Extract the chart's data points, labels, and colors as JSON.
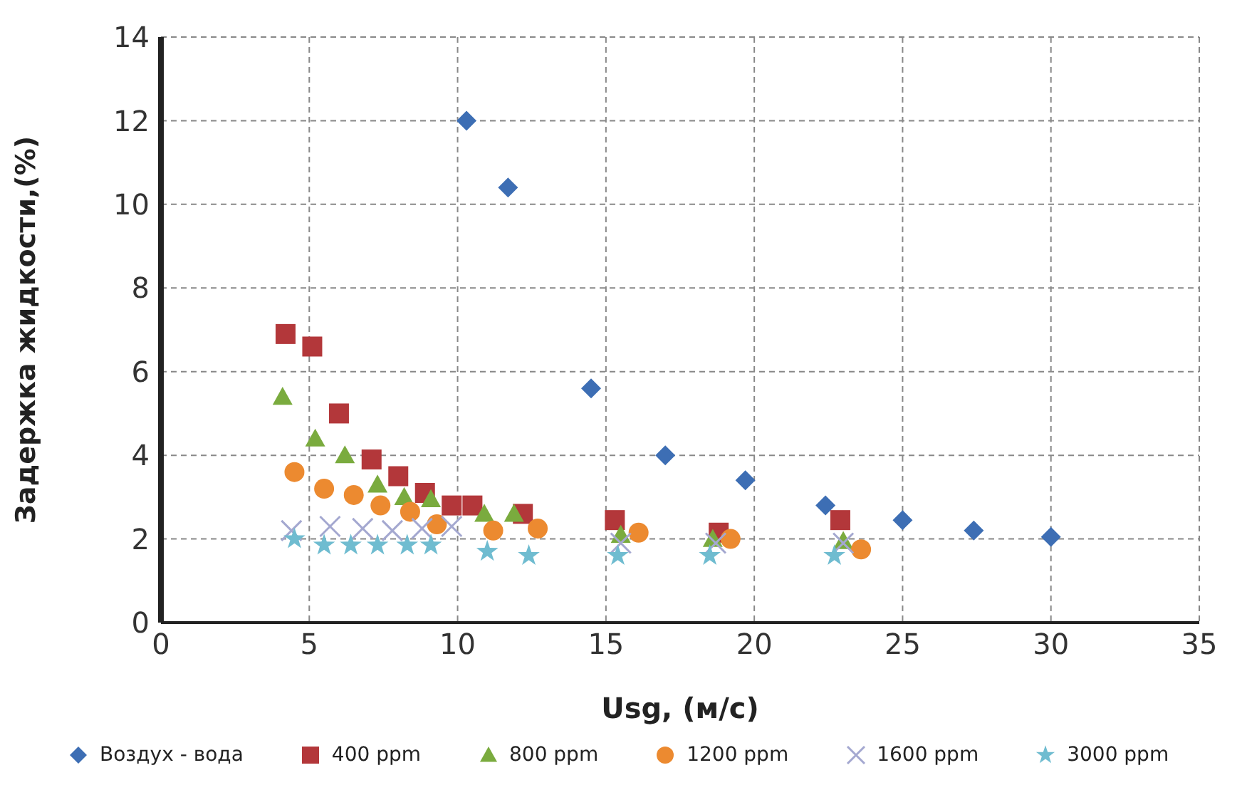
{
  "chart_data": {
    "type": "scatter",
    "xlabel": "Usg, (м/с)",
    "ylabel": "Задержка жидкости,(%)",
    "xlim": [
      0,
      35
    ],
    "xticks": [
      0,
      5,
      10,
      15,
      20,
      25,
      30,
      35
    ],
    "ylim": [
      0,
      14
    ],
    "yticks": [
      0,
      2,
      4,
      6,
      8,
      10,
      12,
      14
    ],
    "grid": true,
    "legend": "bottom",
    "series": [
      {
        "name": "Воздух - вода",
        "color": "#3d6eb4",
        "marker": "diamond",
        "x": [
          10.3,
          11.7,
          14.5,
          17.0,
          19.7,
          22.4,
          25.0,
          27.4,
          30.0
        ],
        "values": [
          12.0,
          10.4,
          5.6,
          4.0,
          3.4,
          2.8,
          2.45,
          2.2,
          2.05
        ]
      },
      {
        "name": "400 ppm",
        "color": "#b3373a",
        "marker": "square",
        "x": [
          4.2,
          5.1,
          6.0,
          7.1,
          8.0,
          8.9,
          9.8,
          10.5,
          12.2,
          15.3,
          18.8,
          22.9
        ],
        "values": [
          6.9,
          6.6,
          5.0,
          3.9,
          3.5,
          3.1,
          2.8,
          2.8,
          2.6,
          2.45,
          2.15,
          2.45
        ]
      },
      {
        "name": "800 ppm",
        "color": "#7aab3e",
        "marker": "triangle",
        "x": [
          4.1,
          5.2,
          6.2,
          7.3,
          8.2,
          9.1,
          10.9,
          11.9,
          15.5,
          18.6,
          23.0
        ],
        "values": [
          5.4,
          4.4,
          4.0,
          3.3,
          3.0,
          2.95,
          2.6,
          2.6,
          2.1,
          2.0,
          1.95
        ]
      },
      {
        "name": "1200 ppm",
        "color": "#ec8a30",
        "marker": "circle",
        "x": [
          4.5,
          5.5,
          6.5,
          7.4,
          8.4,
          9.3,
          11.2,
          12.7,
          16.1,
          19.2,
          23.6
        ],
        "values": [
          3.6,
          3.2,
          3.05,
          2.8,
          2.65,
          2.35,
          2.2,
          2.25,
          2.15,
          2.0,
          1.75
        ]
      },
      {
        "name": "1600 ppm",
        "color": "#a4a8d0",
        "marker": "cross",
        "x": [
          4.4,
          5.7,
          6.8,
          7.8,
          8.8,
          9.8,
          15.5,
          18.7,
          23.0
        ],
        "values": [
          2.2,
          2.3,
          2.25,
          2.2,
          2.25,
          2.3,
          1.9,
          1.9,
          1.9
        ]
      },
      {
        "name": "3000 ppm",
        "color": "#6fbcd0",
        "marker": "star",
        "x": [
          4.5,
          5.5,
          6.4,
          7.3,
          8.3,
          9.1,
          11.0,
          12.4,
          15.4,
          18.5,
          22.7
        ],
        "values": [
          2.0,
          1.85,
          1.85,
          1.85,
          1.85,
          1.85,
          1.7,
          1.6,
          1.6,
          1.6,
          1.6
        ]
      }
    ]
  }
}
